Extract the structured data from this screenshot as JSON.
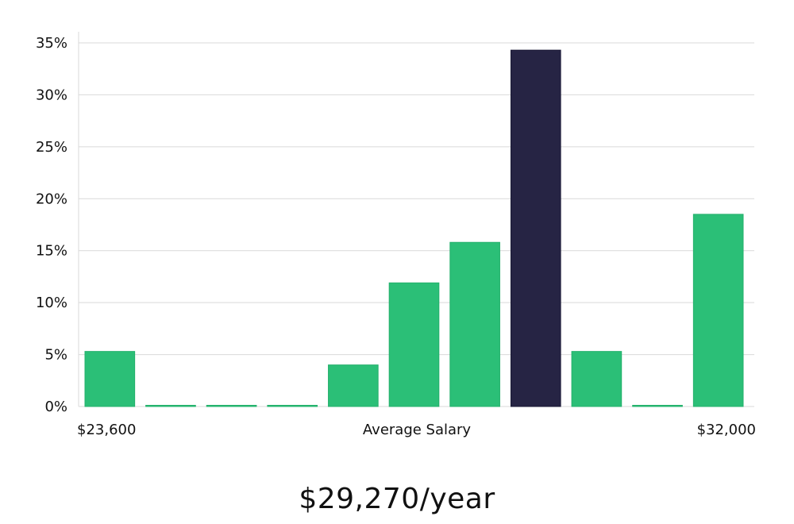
{
  "chart_data": {
    "type": "bar",
    "title": "",
    "xlabel": "Average Salary",
    "ylabel": "",
    "x_range_labels": {
      "min": "$23,600",
      "max": "$32,000"
    },
    "ylim": [
      0,
      35
    ],
    "yticks": [
      "0%",
      "5%",
      "10%",
      "15%",
      "20%",
      "25%",
      "30%",
      "35%"
    ],
    "grid": true,
    "categories": [
      "$23,600",
      "",
      "",
      "",
      "",
      "",
      "",
      "",
      "",
      "",
      "$32,000"
    ],
    "values": [
      5.3,
      0,
      0,
      0,
      4.0,
      11.9,
      15.8,
      34.3,
      5.3,
      0,
      18.5
    ],
    "highlight_index": 7,
    "colors": {
      "bar": "#2bbf77",
      "highlight": "#262444",
      "grid": "#d9d9d9"
    }
  },
  "salary_label": "$29,270/year"
}
